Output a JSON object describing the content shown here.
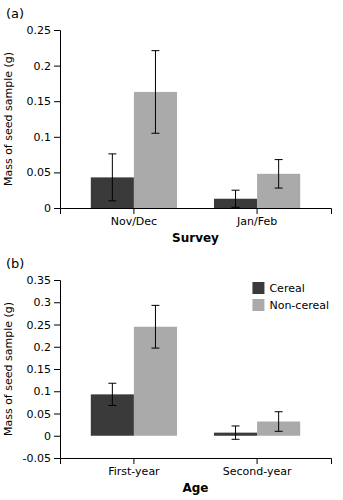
{
  "chart_data": [
    {
      "type": "bar",
      "annotation": "(a)",
      "x_label": "Survey",
      "y_label": "Mass of seed sample (g)",
      "categories": [
        "Nov/Dec",
        "Jan/Feb"
      ],
      "series": [
        {
          "color": "#3a3a3a",
          "values": [
            0.043,
            0.013
          ],
          "errors": [
            0.033,
            0.012
          ]
        },
        {
          "color": "#aaaaaa",
          "values": [
            0.163,
            0.048
          ],
          "errors": [
            0.058,
            0.02
          ]
        }
      ],
      "ylim": [
        0,
        0.25
      ],
      "yticks": [
        0,
        0.05,
        0.1,
        0.15,
        0.2,
        0.25
      ]
    },
    {
      "type": "bar",
      "annotation": "(b)",
      "x_label": "Age",
      "y_label": "Mass of seed sample (g)",
      "categories": [
        "First-year",
        "Second-year"
      ],
      "series": [
        {
          "name": "Cereal",
          "color": "#3a3a3a",
          "values": [
            0.093,
            0.007
          ],
          "errors": [
            0.025,
            0.015
          ]
        },
        {
          "name": "Non-cereal",
          "color": "#aaaaaa",
          "values": [
            0.245,
            0.032
          ],
          "errors": [
            0.048,
            0.022
          ]
        }
      ],
      "ylim": [
        -0.05,
        0.35
      ],
      "yticks": [
        -0.05,
        0,
        0.05,
        0.1,
        0.15,
        0.2,
        0.25,
        0.3,
        0.35
      ],
      "legend": "upper right"
    }
  ]
}
